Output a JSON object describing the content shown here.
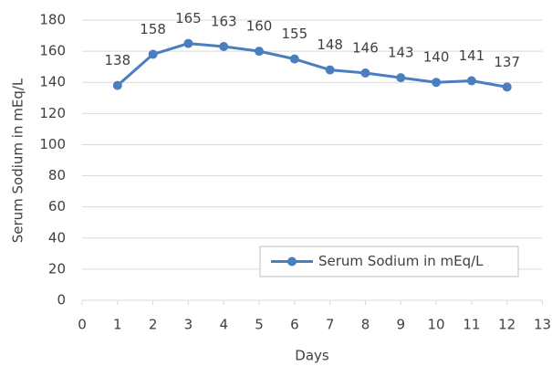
{
  "chart_data": {
    "type": "line",
    "x_label": "Days",
    "y_label": "Serum Sodium in mEq/L",
    "x": [
      1,
      2,
      3,
      4,
      5,
      6,
      7,
      8,
      9,
      10,
      11,
      12
    ],
    "series": [
      {
        "name": "Serum Sodium in mEq/L",
        "color": "#4a7ebf",
        "values": [
          138,
          158,
          165,
          163,
          160,
          155,
          148,
          146,
          143,
          140,
          141,
          137
        ]
      }
    ],
    "xlim": [
      0,
      13
    ],
    "xticks": [
      0,
      1,
      2,
      3,
      4,
      5,
      6,
      7,
      8,
      9,
      10,
      11,
      12,
      13
    ],
    "ylim": [
      0,
      180
    ],
    "yticks": [
      0,
      20,
      40,
      60,
      80,
      100,
      120,
      140,
      160,
      180
    ],
    "grid": true,
    "legend": "lower right",
    "data_labels": true
  }
}
